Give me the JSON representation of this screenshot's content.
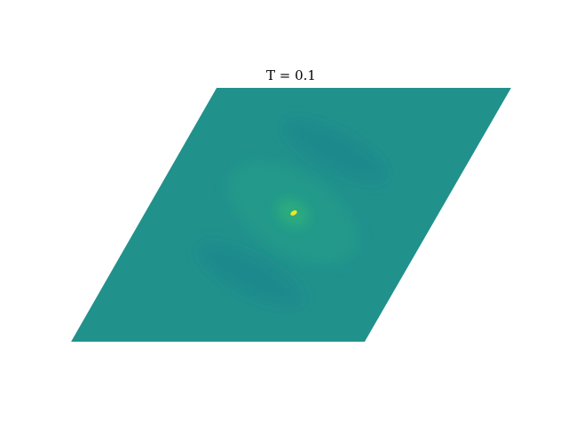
{
  "chart_data": {
    "type": "heatmap",
    "title": "T = 0.1"
  }
}
